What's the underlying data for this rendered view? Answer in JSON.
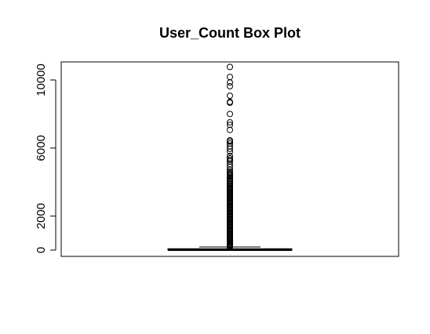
{
  "chart_data": {
    "type": "box",
    "title": "User_Count Box Plot",
    "xlabel": "",
    "ylabel": "",
    "ylim": [
      -400,
      11000
    ],
    "y_ticks": [
      0,
      2000,
      6000,
      10000
    ],
    "y_tick_labels": [
      "0",
      "2000",
      "6000",
      "10000"
    ],
    "box": {
      "min": 4,
      "q1": 10,
      "median": 24,
      "q3": 81,
      "whisker_high": 187
    },
    "outliers": [
      10766,
      10179,
      9851,
      9629,
      9073,
      8713,
      8661,
      8003,
      7512,
      7362,
      7064,
      6452,
      6382,
      6270,
      6107,
      5950,
      5779,
      5538,
      5397,
      5305,
      5211,
      5060,
      4890,
      4723,
      4620,
      4530,
      4470,
      4390,
      4320,
      4250,
      4180,
      4110,
      4050,
      3960,
      3880,
      3810,
      3740,
      3680,
      3620,
      3560,
      3500,
      3440,
      3380,
      3320,
      3260,
      3200,
      3140,
      3080,
      3020,
      2960,
      2900,
      2840,
      2780,
      2720,
      2660,
      2600,
      2540,
      2480,
      2420,
      2360,
      2300,
      2240,
      2180,
      2120,
      2060,
      2000,
      1940,
      1880,
      1820,
      1760,
      1700,
      1640,
      1580,
      1520,
      1460,
      1400,
      1340,
      1280,
      1220,
      1160,
      1100,
      1040,
      980,
      920,
      860,
      800,
      740,
      680,
      620,
      560,
      500,
      450,
      400,
      350,
      300,
      260,
      230,
      210,
      195
    ],
    "grid": false,
    "colors": {
      "stroke": "#000000",
      "background": "#ffffff"
    }
  }
}
